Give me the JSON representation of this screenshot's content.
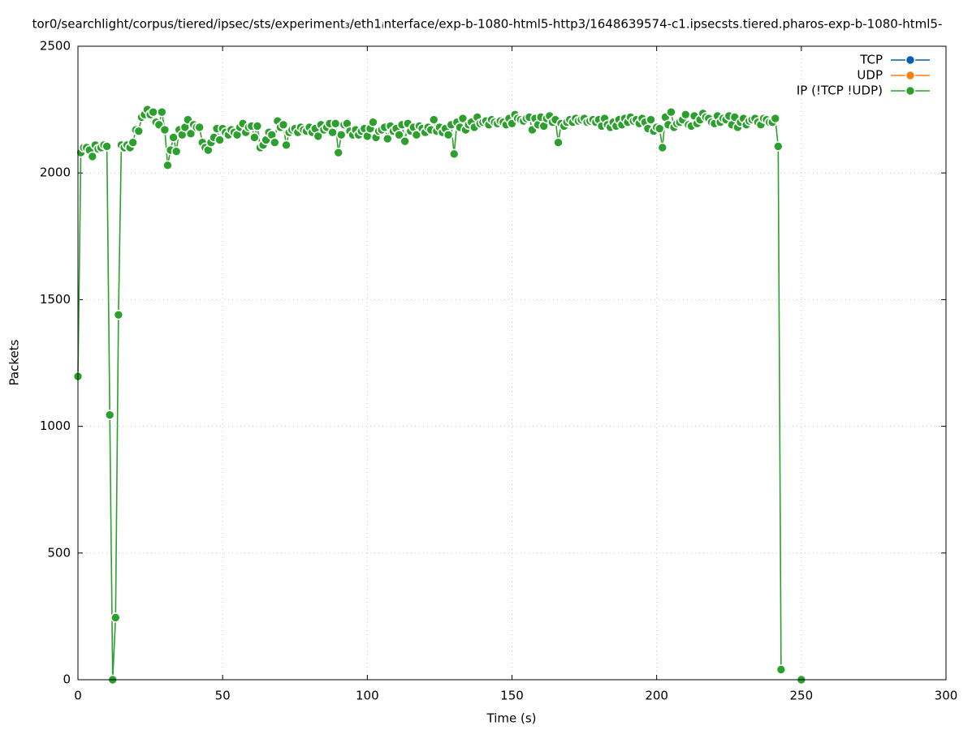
{
  "chart_data": {
    "type": "line",
    "title": "tor0/searchlight/corpus/tiered/ipsec/sts/experiment₃/eth1ᵢnterface/exp-b-1080-html5-http3/1648639574-c1.ipsecsts.tiered.pharos-exp-b-1080-html5-",
    "xlabel": "Time (s)",
    "ylabel": "Packets",
    "xlim": [
      0,
      300
    ],
    "xticks": [
      0,
      50,
      100,
      150,
      200,
      250,
      300
    ],
    "ylim": [
      0,
      2500
    ],
    "yticks": [
      0,
      500,
      1000,
      1500,
      2000,
      2500
    ],
    "grid": true,
    "legend": "top-right",
    "x": [
      0,
      1,
      2,
      3,
      4,
      5,
      6,
      7,
      8,
      9,
      10,
      11,
      12,
      13,
      14,
      15,
      16,
      17,
      18,
      19,
      20,
      21,
      22,
      23,
      24,
      25,
      26,
      27,
      28,
      29,
      30,
      31,
      32,
      33,
      34,
      35,
      36,
      37,
      38,
      39,
      40,
      41,
      42,
      43,
      44,
      45,
      46,
      47,
      48,
      49,
      50,
      51,
      52,
      53,
      54,
      55,
      56,
      57,
      58,
      59,
      60,
      61,
      62,
      63,
      64,
      65,
      66,
      67,
      68,
      69,
      70,
      71,
      72,
      73,
      74,
      75,
      76,
      77,
      78,
      79,
      80,
      81,
      82,
      83,
      84,
      85,
      86,
      87,
      88,
      89,
      90,
      91,
      92,
      93,
      94,
      95,
      96,
      97,
      98,
      99,
      100,
      101,
      102,
      103,
      104,
      105,
      106,
      107,
      108,
      109,
      110,
      111,
      112,
      113,
      114,
      115,
      116,
      117,
      118,
      119,
      120,
      121,
      122,
      123,
      124,
      125,
      126,
      127,
      128,
      129,
      130,
      131,
      132,
      133,
      134,
      135,
      136,
      137,
      138,
      139,
      140,
      141,
      142,
      143,
      144,
      145,
      146,
      147,
      148,
      149,
      150,
      151,
      152,
      153,
      154,
      155,
      156,
      157,
      158,
      159,
      160,
      161,
      162,
      163,
      164,
      165,
      166,
      167,
      168,
      169,
      170,
      171,
      172,
      173,
      174,
      175,
      176,
      177,
      178,
      179,
      180,
      181,
      182,
      183,
      184,
      185,
      186,
      187,
      188,
      189,
      190,
      191,
      192,
      193,
      194,
      195,
      196,
      197,
      198,
      199,
      200,
      201,
      202,
      203,
      204,
      205,
      206,
      207,
      208,
      209,
      210,
      211,
      212,
      213,
      214,
      215,
      216,
      217,
      218,
      219,
      220,
      221,
      222,
      223,
      224,
      225,
      226,
      227,
      228,
      229,
      230,
      231,
      232,
      233,
      234,
      235,
      236,
      237,
      238,
      239,
      240,
      241,
      242,
      243,
      244,
      250
    ],
    "series": [
      {
        "name": "TCP",
        "color": "#0060ad",
        "values": [
          null,
          null,
          null,
          null,
          null,
          null,
          null,
          null,
          null,
          null,
          null,
          null,
          null,
          null,
          null,
          null,
          null,
          null,
          null,
          null,
          null,
          null,
          null,
          null,
          null,
          null,
          null,
          null,
          null,
          null,
          null,
          null,
          null,
          null,
          null,
          null,
          null,
          null,
          null,
          null,
          null,
          null,
          null,
          null,
          null,
          null,
          null,
          null,
          null,
          null,
          null,
          null,
          null,
          null,
          null,
          null,
          null,
          null,
          null,
          null,
          null,
          null,
          null,
          null,
          null,
          null,
          null,
          null,
          null,
          null,
          null,
          null,
          null,
          null,
          null,
          null,
          null,
          null,
          null,
          null,
          null,
          null,
          null,
          null,
          null,
          null,
          null,
          null,
          null,
          null,
          null,
          null,
          null,
          null,
          null,
          null,
          null,
          null,
          null,
          null,
          null,
          null,
          null,
          null,
          null,
          null,
          null,
          null,
          null,
          null,
          null,
          null,
          null,
          null,
          null,
          null,
          null,
          null,
          null,
          null,
          null,
          null,
          null,
          null,
          null,
          null,
          null,
          null,
          null,
          null,
          null,
          null,
          null,
          null,
          null,
          null,
          null,
          null,
          null,
          null,
          null,
          null,
          null,
          null,
          null,
          null,
          null,
          null,
          null,
          null,
          null,
          null,
          null,
          null,
          null,
          null,
          null,
          null,
          null,
          null,
          null,
          null,
          null,
          null,
          null,
          null,
          null,
          null,
          null,
          null,
          null,
          null,
          null,
          null,
          null,
          null,
          null,
          null,
          null,
          null,
          null,
          null,
          null,
          null,
          null,
          null,
          null,
          null,
          null,
          null,
          null,
          null,
          null,
          null,
          null,
          null,
          null,
          null,
          null,
          null,
          null,
          null,
          null,
          null,
          null,
          null,
          null,
          null,
          null,
          null,
          null,
          null,
          null,
          null,
          null,
          null,
          null,
          null,
          null,
          null,
          null,
          null,
          null,
          null,
          null,
          null,
          null,
          null,
          null,
          null,
          null,
          null,
          null,
          null,
          null,
          null,
          null,
          null,
          null,
          null,
          null,
          null,
          null,
          null,
          null,
          null
        ]
      },
      {
        "name": "UDP",
        "color": "#ff7f0e",
        "values": [
          null,
          null,
          null,
          null,
          null,
          null,
          null,
          null,
          null,
          null,
          null,
          null,
          null,
          null,
          null,
          null,
          null,
          null,
          null,
          null,
          null,
          null,
          null,
          null,
          null,
          null,
          null,
          null,
          null,
          null,
          null,
          null,
          null,
          null,
          null,
          null,
          null,
          null,
          null,
          null,
          null,
          null,
          null,
          null,
          null,
          null,
          null,
          null,
          null,
          null,
          null,
          null,
          null,
          null,
          null,
          null,
          null,
          null,
          null,
          null,
          null,
          null,
          null,
          null,
          null,
          null,
          null,
          null,
          null,
          null,
          null,
          null,
          null,
          null,
          null,
          null,
          null,
          null,
          null,
          null,
          null,
          null,
          null,
          null,
          null,
          null,
          null,
          null,
          null,
          null,
          null,
          null,
          null,
          null,
          null,
          null,
          null,
          null,
          null,
          null,
          null,
          null,
          null,
          null,
          null,
          null,
          null,
          null,
          null,
          null,
          null,
          null,
          null,
          null,
          null,
          null,
          null,
          null,
          null,
          null,
          null,
          null,
          null,
          null,
          null,
          null,
          null,
          null,
          null,
          null,
          null,
          null,
          null,
          null,
          null,
          null,
          null,
          null,
          null,
          null,
          null,
          null,
          null,
          null,
          null,
          null,
          null,
          null,
          null,
          null,
          null,
          null,
          null,
          null,
          null,
          null,
          null,
          null,
          null,
          null,
          null,
          null,
          null,
          null,
          null,
          null,
          null,
          null,
          null,
          null,
          null,
          null,
          null,
          null,
          null,
          null,
          null,
          null,
          null,
          null,
          null,
          null,
          null,
          null,
          null,
          null,
          null,
          null,
          null,
          null,
          null,
          null,
          null,
          null,
          null,
          null,
          null,
          null,
          null,
          null,
          null,
          null,
          null,
          null,
          null,
          null,
          null,
          null,
          null,
          null,
          null,
          null,
          null,
          null,
          null,
          null,
          null,
          null,
          null,
          null,
          null,
          null,
          null,
          null,
          null,
          null,
          null,
          null,
          null,
          null,
          null,
          null,
          null,
          null,
          null,
          null,
          null,
          null,
          null,
          null,
          null,
          null,
          null,
          null,
          null,
          null
        ]
      },
      {
        "name": "IP (!TCP  !UDP)",
        "color": "#2ca02c",
        "values": [
          1197,
          2080,
          2100,
          2100,
          2090,
          2065,
          2110,
          2095,
          2100,
          2110,
          2105,
          1045,
          0,
          245,
          1440,
          2110,
          2100,
          2110,
          2100,
          2120,
          2170,
          2165,
          2220,
          2230,
          2250,
          2230,
          2240,
          2200,
          2190,
          2240,
          2170,
          2030,
          2090,
          2140,
          2085,
          2170,
          2150,
          2180,
          2210,
          2155,
          2190,
          2180,
          2180,
          2120,
          2100,
          2090,
          2120,
          2140,
          2175,
          2130,
          2175,
          2160,
          2150,
          2170,
          2160,
          2150,
          2180,
          2195,
          2160,
          2180,
          2185,
          2140,
          2185,
          2100,
          2110,
          2130,
          2160,
          2150,
          2120,
          2205,
          2180,
          2190,
          2110,
          2160,
          2170,
          2175,
          2160,
          2180,
          2170,
          2165,
          2180,
          2160,
          2175,
          2145,
          2190,
          2170,
          2180,
          2195,
          2160,
          2195,
          2080,
          2150,
          2190,
          2195,
          2165,
          2150,
          2170,
          2150,
          2165,
          2175,
          2145,
          2175,
          2200,
          2140,
          2165,
          2170,
          2180,
          2135,
          2185,
          2165,
          2175,
          2150,
          2190,
          2125,
          2195,
          2165,
          2180,
          2150,
          2185,
          2175,
          2160,
          2180,
          2170,
          2210,
          2165,
          2180,
          2160,
          2175,
          2150,
          2190,
          2075,
          2200,
          2180,
          2215,
          2170,
          2190,
          2200,
          2180,
          2220,
          2195,
          2200,
          2205,
          2190,
          2210,
          2200,
          2195,
          2205,
          2200,
          2190,
          2215,
          2195,
          2230,
          2215,
          2210,
          2205,
          2215,
          2220,
          2170,
          2215,
          2190,
          2220,
          2185,
          2215,
          2225,
          2200,
          2210,
          2120,
          2195,
          2185,
          2200,
          2210,
          2200,
          2215,
          2205,
          2210,
          2215,
          2200,
          2205,
          2210,
          2200,
          2210,
          2185,
          2215,
          2190,
          2180,
          2200,
          2185,
          2210,
          2190,
          2215,
          2200,
          2220,
          2205,
          2210,
          2195,
          2215,
          2200,
          2175,
          2210,
          2165,
          2180,
          2175,
          2100,
          2220,
          2190,
          2240,
          2180,
          2195,
          2200,
          2210,
          2230,
          2190,
          2185,
          2225,
          2195,
          2210,
          2235,
          2220,
          2215,
          2200,
          2195,
          2225,
          2200,
          2215,
          2210,
          2225,
          2190,
          2220,
          2180,
          2200,
          2215,
          2190,
          2205,
          2210,
          2215,
          2200,
          2190,
          2215,
          2210,
          2200,
          2200,
          2215,
          2105,
          40,
          null,
          0
        ]
      }
    ]
  }
}
